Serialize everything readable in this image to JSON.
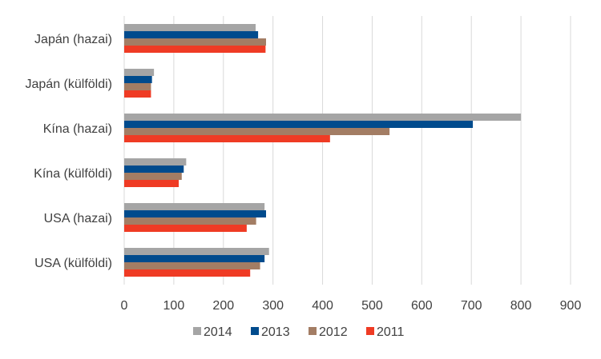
{
  "chart_data": {
    "type": "bar",
    "orientation": "horizontal",
    "categories": [
      "Japán (hazai)",
      "Japán (külföldi)",
      "Kína (hazai)",
      "Kína (külföldi)",
      "USA (hazai)",
      "USA (külföldi)"
    ],
    "series": [
      {
        "name": "2014",
        "color": "#a5a5a5",
        "values": [
          265,
          60,
          800,
          125,
          283,
          292
        ]
      },
      {
        "name": "2013",
        "color": "#004b8d",
        "values": [
          270,
          56,
          703,
          120,
          286,
          283
        ]
      },
      {
        "name": "2012",
        "color": "#a37d64",
        "values": [
          286,
          54,
          535,
          116,
          266,
          274
        ]
      },
      {
        "name": "2011",
        "color": "#ef3b24",
        "values": [
          285,
          54,
          415,
          110,
          247,
          254
        ]
      }
    ],
    "xlim": [
      0,
      900
    ],
    "ticks": [
      "0",
      "100",
      "200",
      "300",
      "400",
      "500",
      "600",
      "700",
      "800",
      "900"
    ],
    "grid": true,
    "legend_position": "bottom",
    "title": "",
    "xlabel": "",
    "ylabel": ""
  }
}
